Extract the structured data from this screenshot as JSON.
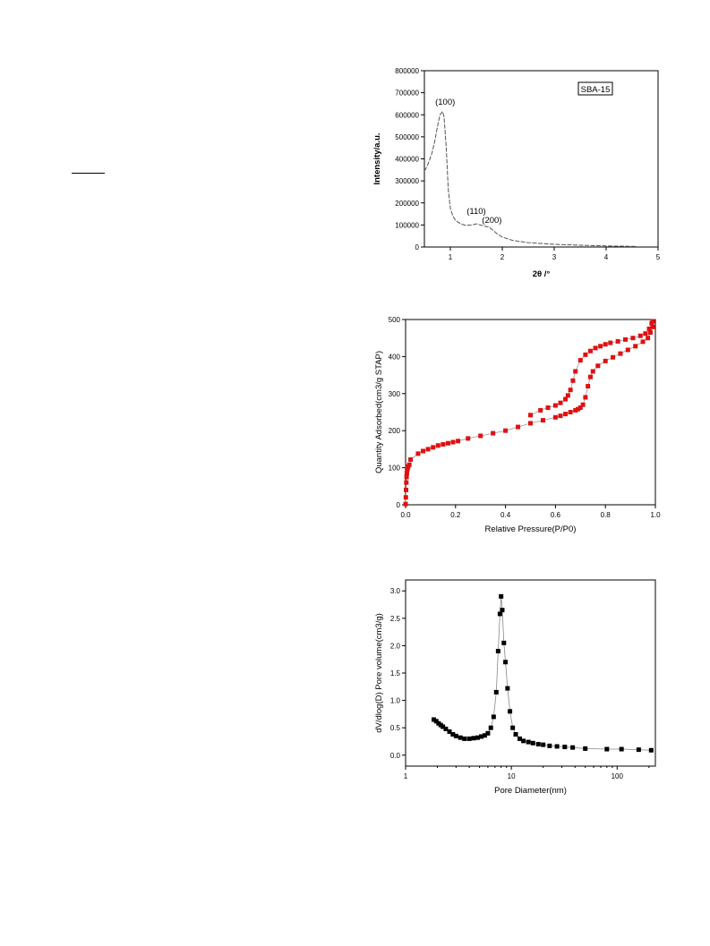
{
  "chart_data": [
    {
      "type": "line",
      "title": "",
      "xlabel": "2θ /°",
      "ylabel": "Intensity/a.u.",
      "xlim": [
        0.5,
        5
      ],
      "ylim": [
        0,
        800000
      ],
      "xticks": [
        "1",
        "2",
        "3",
        "4",
        "5"
      ],
      "yticks": [
        "0",
        "100000",
        "200000",
        "300000",
        "400000",
        "500000",
        "600000",
        "700000",
        "800000"
      ],
      "legend": {
        "label": "SBA-15",
        "position": "top-right"
      },
      "annotations": [
        {
          "text": "(100)",
          "x": 0.9,
          "y": 645000
        },
        {
          "text": "(110)",
          "x": 1.5,
          "y": 150000
        },
        {
          "text": "(200)",
          "x": 1.8,
          "y": 110000
        }
      ],
      "series": [
        {
          "x": [
            0.5,
            0.55,
            0.6,
            0.65,
            0.7,
            0.75,
            0.8,
            0.85,
            0.88,
            0.92,
            0.96,
            1.0,
            1.05,
            1.1,
            1.2,
            1.3,
            1.4,
            1.5,
            1.58,
            1.65,
            1.75,
            1.8,
            1.9,
            2.0,
            2.2,
            2.5,
            3.0,
            3.5,
            4.0,
            4.5,
            4.6
          ],
          "y": [
            345000,
            365000,
            395000,
            430000,
            480000,
            545000,
            600000,
            615000,
            590000,
            450000,
            260000,
            175000,
            140000,
            120000,
            105000,
            98000,
            100000,
            105000,
            100000,
            95000,
            90000,
            80000,
            60000,
            45000,
            30000,
            20000,
            12000,
            8000,
            5000,
            3000,
            2000
          ]
        }
      ]
    },
    {
      "type": "scatter",
      "title": "",
      "xlabel": "Relative Pressure(P/P0)",
      "ylabel": "Quantity Adsorbed(cm3/g  STAP)",
      "xlim": [
        0,
        1
      ],
      "ylim": [
        0,
        500
      ],
      "xticks": [
        "0.0",
        "0.2",
        "0.4",
        "0.6",
        "0.8",
        "1.0"
      ],
      "yticks": [
        "0",
        "100",
        "200",
        "300",
        "400",
        "500"
      ],
      "color": "#e01010",
      "series": [
        {
          "name": "",
          "x": [
            0.0,
            0.001,
            0.002,
            0.003,
            0.004,
            0.005,
            0.006,
            0.007,
            0.008,
            0.01,
            0.015,
            0.02,
            0.05,
            0.07,
            0.09,
            0.11,
            0.13,
            0.15,
            0.17,
            0.19,
            0.21,
            0.25,
            0.3,
            0.35,
            0.4,
            0.45,
            0.5,
            0.55,
            0.6,
            0.62,
            0.64,
            0.66,
            0.68,
            0.69,
            0.7,
            0.71,
            0.72,
            0.73,
            0.74,
            0.75,
            0.77,
            0.8,
            0.83,
            0.86,
            0.89,
            0.92,
            0.95,
            0.97,
            0.98,
            0.99
          ],
          "y": [
            2,
            20,
            40,
            60,
            75,
            85,
            92,
            97,
            100,
            103,
            108,
            122,
            138,
            145,
            150,
            155,
            160,
            163,
            166,
            169,
            172,
            179,
            186,
            193,
            200,
            210,
            220,
            228,
            236,
            240,
            245,
            250,
            255,
            258,
            262,
            270,
            290,
            320,
            345,
            360,
            375,
            388,
            398,
            408,
            418,
            428,
            440,
            450,
            465,
            480
          ]
        },
        {
          "name": "",
          "x": [
            0.99,
            0.985,
            0.975,
            0.96,
            0.94,
            0.91,
            0.88,
            0.85,
            0.82,
            0.8,
            0.78,
            0.76,
            0.74,
            0.72,
            0.7,
            0.68,
            0.67,
            0.66,
            0.65,
            0.64,
            0.62,
            0.6,
            0.57,
            0.54,
            0.5
          ],
          "y": [
            495,
            490,
            475,
            462,
            456,
            450,
            446,
            441,
            437,
            433,
            428,
            423,
            415,
            405,
            390,
            360,
            335,
            310,
            295,
            285,
            275,
            268,
            262,
            255,
            242
          ]
        }
      ]
    },
    {
      "type": "line",
      "title": "",
      "xlabel": "Pore Diameter(nm)",
      "ylabel": "dV/dlog(D) Pore volume(cm3/g)",
      "xscale": "log",
      "xlim": [
        1,
        230
      ],
      "ylim": [
        -0.2,
        3.2
      ],
      "xticks": [
        "1",
        "10",
        "100"
      ],
      "yticks": [
        "0.0",
        "0.5",
        "1.0",
        "1.5",
        "2.0",
        "2.5",
        "3.0"
      ],
      "series": [
        {
          "x": [
            1.85,
            1.95,
            2.05,
            2.15,
            2.25,
            2.4,
            2.6,
            2.8,
            3.0,
            3.3,
            3.6,
            4.0,
            4.4,
            4.8,
            5.2,
            5.6,
            6.0,
            6.4,
            6.8,
            7.2,
            7.5,
            7.8,
            8.0,
            8.2,
            8.5,
            8.8,
            9.2,
            9.7,
            10.3,
            11,
            12,
            13,
            14.5,
            16,
            18,
            20,
            23,
            27,
            32,
            38,
            50,
            80,
            110,
            160,
            210
          ],
          "y": [
            0.65,
            0.62,
            0.58,
            0.55,
            0.52,
            0.48,
            0.43,
            0.38,
            0.35,
            0.32,
            0.3,
            0.3,
            0.31,
            0.32,
            0.34,
            0.36,
            0.4,
            0.5,
            0.7,
            1.15,
            1.9,
            2.58,
            2.9,
            2.65,
            2.05,
            1.7,
            1.22,
            0.8,
            0.5,
            0.38,
            0.3,
            0.26,
            0.24,
            0.22,
            0.2,
            0.19,
            0.17,
            0.16,
            0.15,
            0.14,
            0.12,
            0.11,
            0.11,
            0.1,
            0.09
          ]
        }
      ]
    }
  ]
}
